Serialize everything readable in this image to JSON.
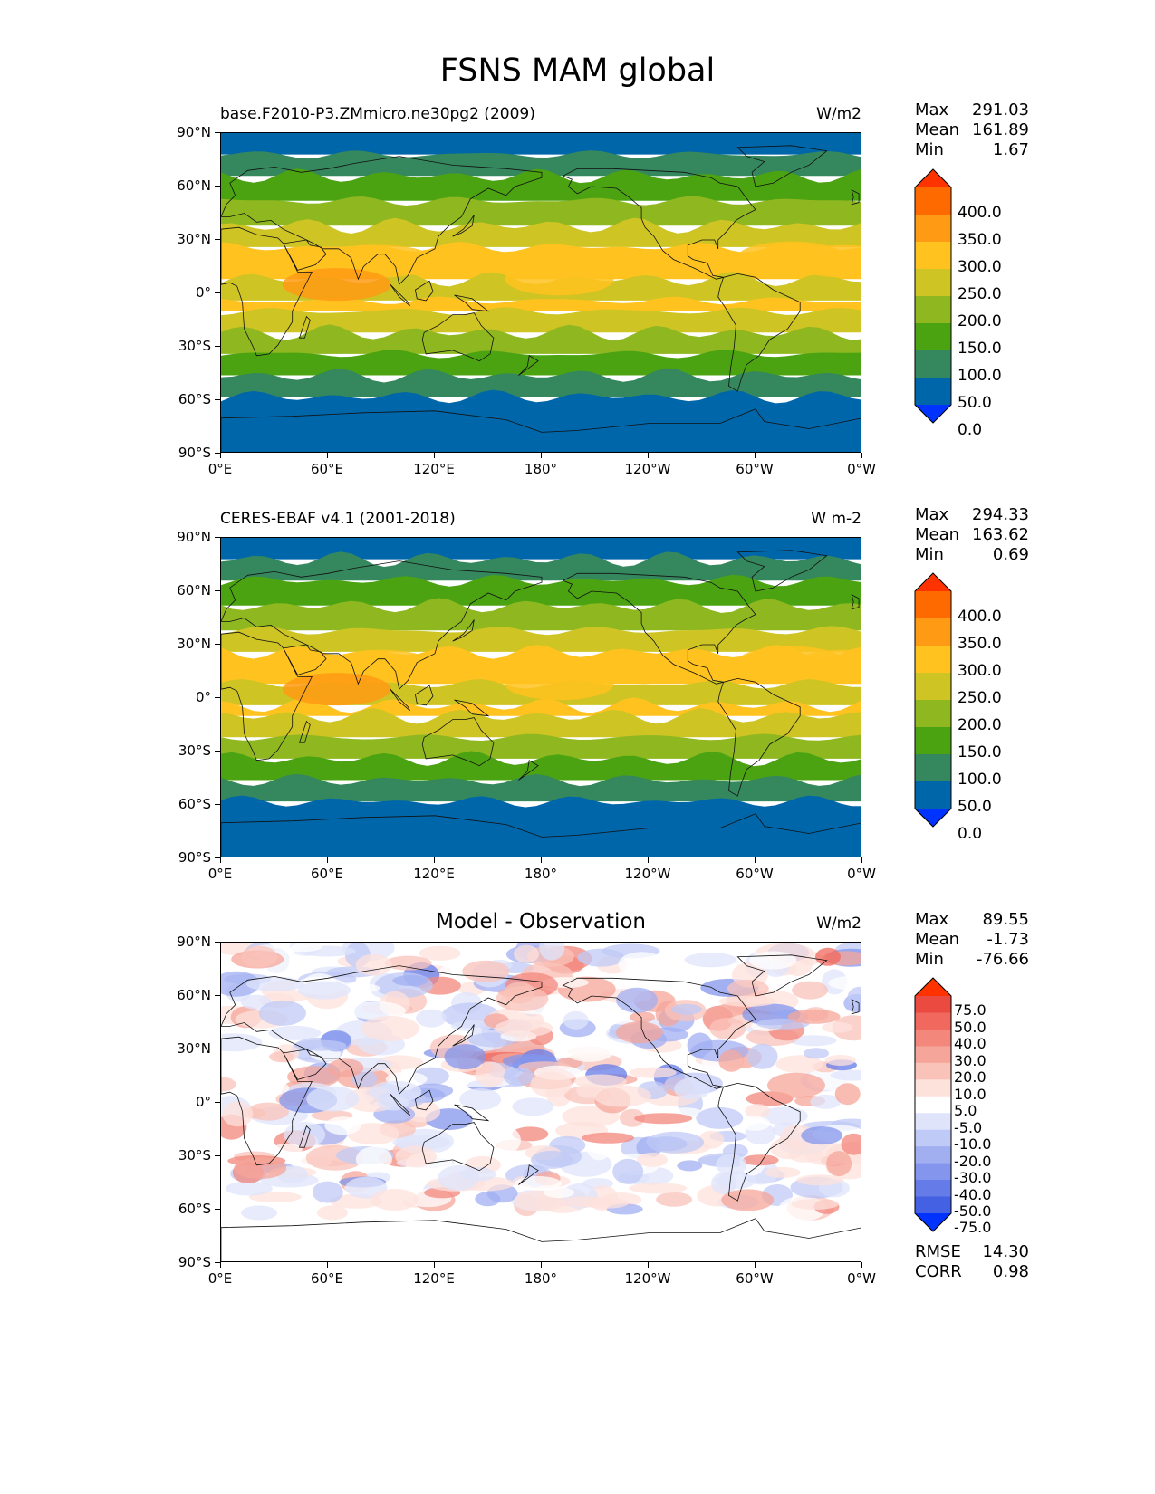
{
  "title": "FSNS MAM global",
  "x_ticks": [
    "0°E",
    "60°E",
    "120°E",
    "180°",
    "120°W",
    "60°W",
    "0°W"
  ],
  "y_ticks": [
    "90°N",
    "60°N",
    "30°N",
    "0°",
    "30°S",
    "60°S",
    "90°S"
  ],
  "panels": [
    {
      "left_title": "base.F2010-P3.ZMmicro.ne30pg2 (2009)",
      "center_title": "",
      "units": "W/m2",
      "stats": {
        "max_label": "Max",
        "max": "291.03",
        "mean_label": "Mean",
        "mean": "161.89",
        "min_label": "Min",
        "min": "1.67"
      }
    },
    {
      "left_title": "CERES-EBAF v4.1 (2001-2018)",
      "center_title": "",
      "units": "W m-2",
      "stats": {
        "max_label": "Max",
        "max": "294.33",
        "mean_label": "Mean",
        "mean": "163.62",
        "min_label": "Min",
        "min": "0.69"
      }
    },
    {
      "left_title": "",
      "center_title": "Model - Observation",
      "units": "W/m2",
      "stats": {
        "max_label": "Max",
        "max": "89.55",
        "mean_label": "Mean",
        "mean": "-1.73",
        "min_label": "Min",
        "min": "-76.66"
      },
      "extra": {
        "rmse_label": "RMSE",
        "rmse": "14.30",
        "corr_label": "CORR",
        "corr": "0.98"
      }
    }
  ],
  "colorbars": {
    "absolute": {
      "labels": [
        "400.0",
        "350.0",
        "300.0",
        "250.0",
        "200.0",
        "150.0",
        "100.0",
        "50.0",
        "0.0"
      ],
      "colors": [
        "#ff3300",
        "#ff6a00",
        "#ff9a14",
        "#ffc21f",
        "#cec424",
        "#8fb720",
        "#4ba312",
        "#35875e",
        "#0066aa",
        "#0033ff"
      ]
    },
    "difference": {
      "labels": [
        "75.0",
        "50.0",
        "40.0",
        "30.0",
        "20.0",
        "10.0",
        "5.0",
        "-5.0",
        "-10.0",
        "-20.0",
        "-30.0",
        "-40.0",
        "-50.0",
        "-75.0"
      ],
      "colors": [
        "#ff3300",
        "#ea4a40",
        "#f0685e",
        "#f3877c",
        "#f6a59a",
        "#fac3ba",
        "#fde2dc",
        "#ffffff",
        "#dfe4fb",
        "#c0caf6",
        "#a1aff1",
        "#8395ec",
        "#647be8",
        "#4561e3",
        "#0033ff"
      ]
    }
  }
}
